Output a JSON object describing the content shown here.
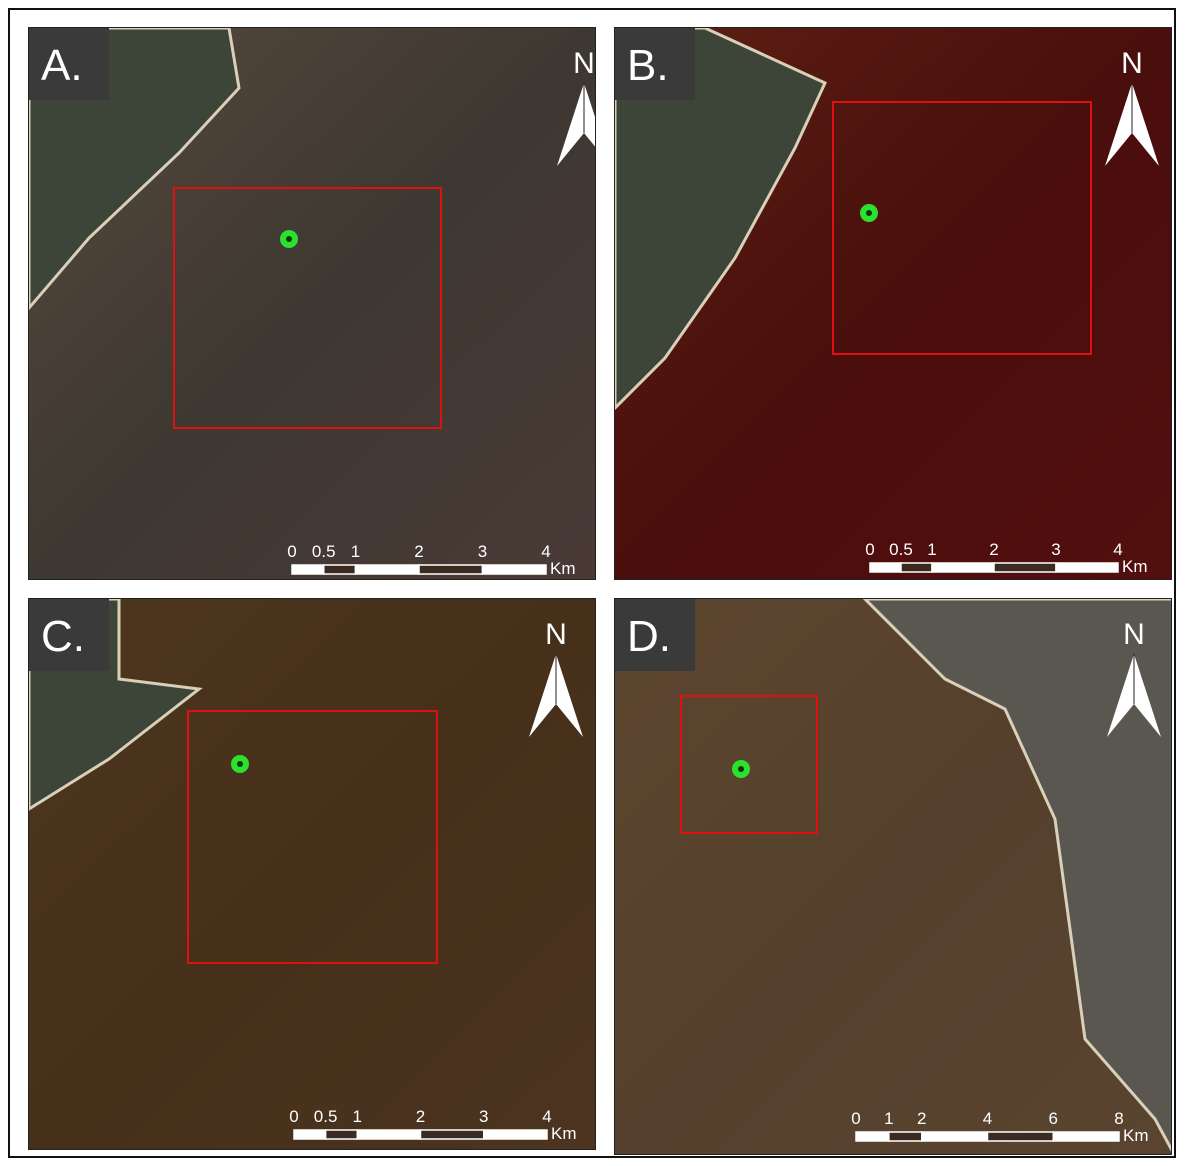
{
  "panels": [
    {
      "label": "A.",
      "north": "N",
      "scale": {
        "ticks": [
          0,
          0.5,
          1,
          2,
          3,
          4
        ],
        "unit": "Km"
      }
    },
    {
      "label": "B.",
      "north": "N",
      "scale": {
        "ticks": [
          0,
          0.5,
          1,
          2,
          3,
          4
        ],
        "unit": "Km"
      }
    },
    {
      "label": "C.",
      "north": "N",
      "scale": {
        "ticks": [
          0,
          0.5,
          1,
          2,
          3,
          4
        ],
        "unit": "Km"
      }
    },
    {
      "label": "D.",
      "north": "N",
      "scale": {
        "ticks": [
          0,
          1,
          2,
          4,
          6,
          8
        ],
        "unit": "Km"
      }
    }
  ]
}
